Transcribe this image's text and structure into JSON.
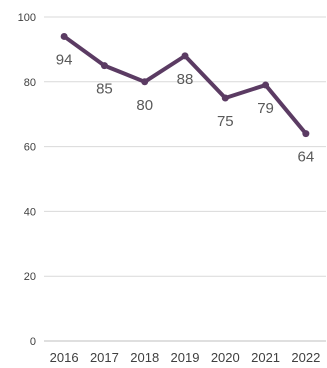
{
  "chart_data": {
    "type": "line",
    "title": "",
    "xlabel": "",
    "ylabel": "",
    "categories": [
      "2016",
      "2017",
      "2018",
      "2019",
      "2020",
      "2021",
      "2022"
    ],
    "series": [
      {
        "values": [
          94,
          85,
          80,
          88,
          75,
          79,
          64
        ]
      }
    ],
    "yticks": [
      "0",
      "20",
      "40",
      "60",
      "80",
      "100"
    ],
    "ylim": [
      0,
      100
    ],
    "grid": true,
    "legend": "none",
    "data_labels": true,
    "colors": {
      "line": "#5b3b63",
      "grid": "#d9d9d9"
    }
  }
}
